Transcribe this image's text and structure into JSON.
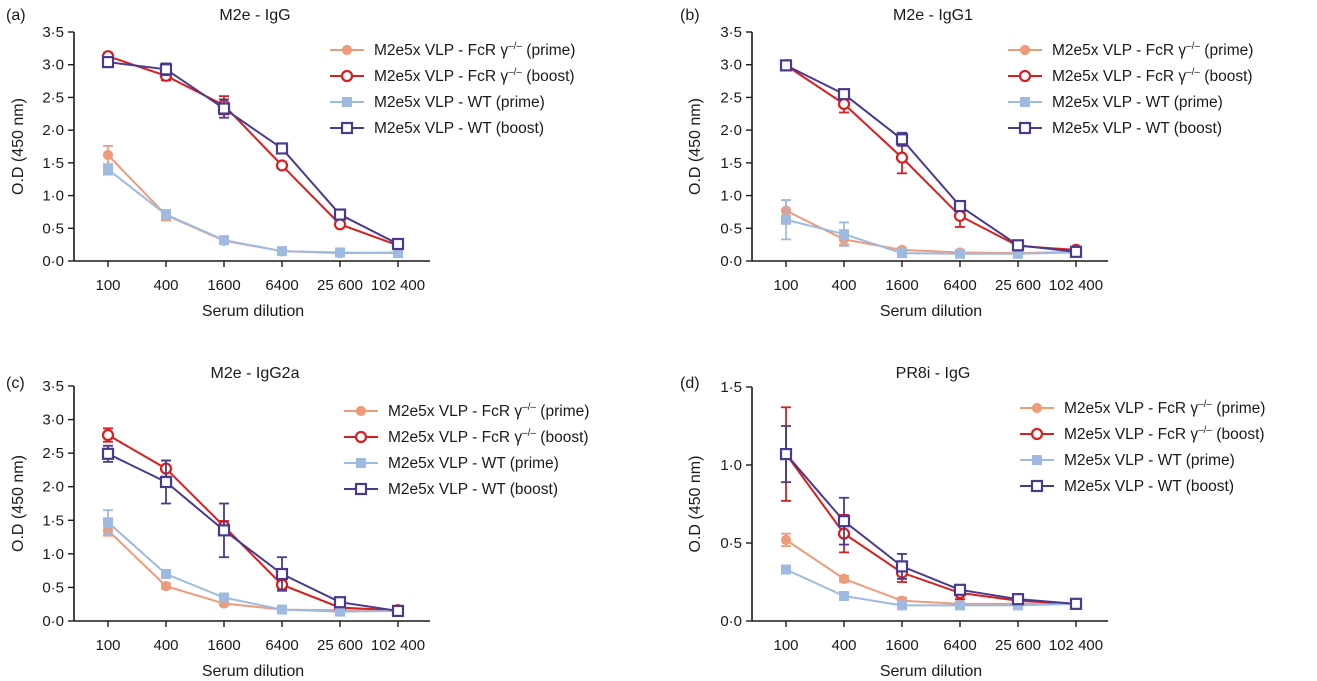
{
  "colors": {
    "fcr_prime": "#ee9b7a",
    "fcr_boost": "#d81e1e",
    "wt_prime": "#9ebae0",
    "wt_boost": "#4b3a8c",
    "axis": "#1a1a1a"
  },
  "chart_data": [
    {
      "panel": "(a)",
      "type": "line",
      "title": "M2e - IgG",
      "xlabel": "Serum dilution",
      "ylabel": "O.D (450 nm)",
      "categories": [
        "100",
        "400",
        "1600",
        "6400",
        "25 600",
        "102 400"
      ],
      "y_ticks": [
        "0·0",
        "0·5",
        "1·0",
        "1·5",
        "2·0",
        "2·5",
        "3·0",
        "3·5"
      ],
      "ylim": [
        0,
        3.5
      ],
      "legend_position": "top-right",
      "series": [
        {
          "name": "M2e5x VLP - FcR γ⁻ᐟ⁻ (prime)",
          "style": "prime-circle",
          "color": "#ee9b7a",
          "values": [
            1.62,
            0.7,
            0.31,
            0.15,
            0.12,
            0.13
          ],
          "errors": [
            0.14,
            0.08,
            0.03,
            0.02,
            0.02,
            0.02
          ]
        },
        {
          "name": "M2e5x VLP - FcR γ⁻ᐟ⁻ (boost)",
          "style": "boost-circle",
          "color": "#d81e1e",
          "values": [
            3.13,
            2.83,
            2.38,
            1.46,
            0.56,
            0.24
          ],
          "errors": [
            0.05,
            0.07,
            0.14,
            0.05,
            0.04,
            0.03
          ]
        },
        {
          "name": "M2e5x VLP - WT (prime)",
          "style": "prime-square",
          "color": "#9ebae0",
          "values": [
            1.4,
            0.71,
            0.32,
            0.15,
            0.13,
            0.12
          ],
          "errors": [
            0.08,
            0.06,
            0.03,
            0.02,
            0.02,
            0.02
          ]
        },
        {
          "name": "M2e5x VLP - WT (boost)",
          "style": "boost-square",
          "color": "#4b3a8c",
          "values": [
            3.04,
            2.93,
            2.33,
            1.72,
            0.71,
            0.26
          ],
          "errors": [
            0.07,
            0.09,
            0.14,
            0.07,
            0.04,
            0.03
          ]
        }
      ]
    },
    {
      "panel": "(b)",
      "type": "line",
      "title": "M2e - IgG1",
      "xlabel": "Serum dilution",
      "ylabel": "O.D (450 nm)",
      "categories": [
        "100",
        "400",
        "1600",
        "6400",
        "25 600",
        "102 400"
      ],
      "y_ticks": [
        "0·0",
        "0·5",
        "1·0",
        "1·5",
        "2·0",
        "2·5",
        "3·0",
        "3·5"
      ],
      "ylim": [
        0,
        3.5
      ],
      "legend_position": "top-right",
      "series": [
        {
          "name": "M2e5x VLP - FcR γ⁻ᐟ⁻ (prime)",
          "style": "prime-circle",
          "color": "#ee9b7a",
          "values": [
            0.77,
            0.33,
            0.17,
            0.13,
            0.12,
            0.14
          ],
          "errors": [
            0.16,
            0.08,
            0.03,
            0.02,
            0.02,
            0.02
          ]
        },
        {
          "name": "M2e5x VLP - FcR γ⁻ᐟ⁻ (boost)",
          "style": "boost-circle",
          "color": "#d81e1e",
          "values": [
            2.99,
            2.4,
            1.58,
            0.69,
            0.23,
            0.17
          ],
          "errors": [
            0.04,
            0.13,
            0.24,
            0.17,
            0.04,
            0.03
          ]
        },
        {
          "name": "M2e5x VLP - WT (prime)",
          "style": "prime-square",
          "color": "#9ebae0",
          "values": [
            0.63,
            0.41,
            0.12,
            0.11,
            0.11,
            0.13
          ],
          "errors": [
            0.3,
            0.18,
            0.03,
            0.02,
            0.02,
            0.02
          ]
        },
        {
          "name": "M2e5x VLP - WT (boost)",
          "style": "boost-square",
          "color": "#4b3a8c",
          "values": [
            2.99,
            2.55,
            1.86,
            0.84,
            0.24,
            0.14
          ],
          "errors": [
            0.04,
            0.07,
            0.1,
            0.05,
            0.04,
            0.03
          ]
        }
      ]
    },
    {
      "panel": "(c)",
      "type": "line",
      "title": "M2e - IgG2a",
      "xlabel": "Serum dilution",
      "ylabel": "O.D (450 nm)",
      "categories": [
        "100",
        "400",
        "1600",
        "6400",
        "25 600",
        "102 400"
      ],
      "y_ticks": [
        "0·0",
        "0·5",
        "1·0",
        "1·5",
        "2·0",
        "2·5",
        "3·0",
        "3·5"
      ],
      "ylim": [
        0,
        3.5
      ],
      "legend_position": "top-right",
      "series": [
        {
          "name": "M2e5x VLP - FcR γ⁻ᐟ⁻ (prime)",
          "style": "prime-circle",
          "color": "#ee9b7a",
          "values": [
            1.35,
            0.52,
            0.26,
            0.17,
            0.16,
            0.15
          ],
          "errors": [
            0.08,
            0.04,
            0.03,
            0.02,
            0.02,
            0.02
          ]
        },
        {
          "name": "M2e5x VLP - FcR γ⁻ᐟ⁻ (boost)",
          "style": "boost-circle",
          "color": "#d81e1e",
          "values": [
            2.77,
            2.27,
            1.41,
            0.54,
            0.2,
            0.16
          ],
          "errors": [
            0.1,
            0.12,
            0.08,
            0.07,
            0.03,
            0.02
          ]
        },
        {
          "name": "M2e5x VLP - WT (prime)",
          "style": "prime-square",
          "color": "#9ebae0",
          "values": [
            1.47,
            0.7,
            0.35,
            0.17,
            0.14,
            0.15
          ],
          "errors": [
            0.18,
            0.05,
            0.04,
            0.02,
            0.02,
            0.02
          ]
        },
        {
          "name": "M2e5x VLP - WT (boost)",
          "style": "boost-square",
          "color": "#4b3a8c",
          "values": [
            2.49,
            2.07,
            1.35,
            0.7,
            0.28,
            0.15
          ],
          "errors": [
            0.12,
            0.32,
            0.4,
            0.25,
            0.05,
            0.02
          ]
        }
      ]
    },
    {
      "panel": "(d)",
      "type": "line",
      "title": "PR8i - IgG",
      "xlabel": "Serum dilution",
      "ylabel": "O.D (450 nm)",
      "categories": [
        "100",
        "400",
        "1600",
        "6400",
        "25 600",
        "102 400"
      ],
      "y_ticks": [
        "0·0",
        "0·5",
        "1·0",
        "1·5"
      ],
      "ylim": [
        0,
        1.5
      ],
      "legend_position": "top-right",
      "series": [
        {
          "name": "M2e5x VLP - FcR γ⁻ᐟ⁻ (prime)",
          "style": "prime-circle",
          "color": "#ee9b7a",
          "values": [
            0.52,
            0.27,
            0.13,
            0.11,
            0.11,
            0.11
          ],
          "errors": [
            0.04,
            0.02,
            0.02,
            0.01,
            0.01,
            0.01
          ]
        },
        {
          "name": "M2e5x VLP - FcR γ⁻ᐟ⁻ (boost)",
          "style": "boost-circle",
          "color": "#d81e1e",
          "values": [
            1.07,
            0.56,
            0.31,
            0.18,
            0.13,
            0.11
          ],
          "errors": [
            0.3,
            0.12,
            0.06,
            0.04,
            0.02,
            0.01
          ]
        },
        {
          "name": "M2e5x VLP - WT (prime)",
          "style": "prime-square",
          "color": "#9ebae0",
          "values": [
            0.33,
            0.16,
            0.1,
            0.1,
            0.1,
            0.11
          ],
          "errors": [
            0.02,
            0.02,
            0.01,
            0.01,
            0.01,
            0.01
          ]
        },
        {
          "name": "M2e5x VLP - WT (boost)",
          "style": "boost-square",
          "color": "#4b3a8c",
          "values": [
            1.07,
            0.64,
            0.35,
            0.2,
            0.14,
            0.11
          ],
          "errors": [
            0.18,
            0.15,
            0.08,
            0.03,
            0.02,
            0.01
          ]
        }
      ]
    }
  ]
}
